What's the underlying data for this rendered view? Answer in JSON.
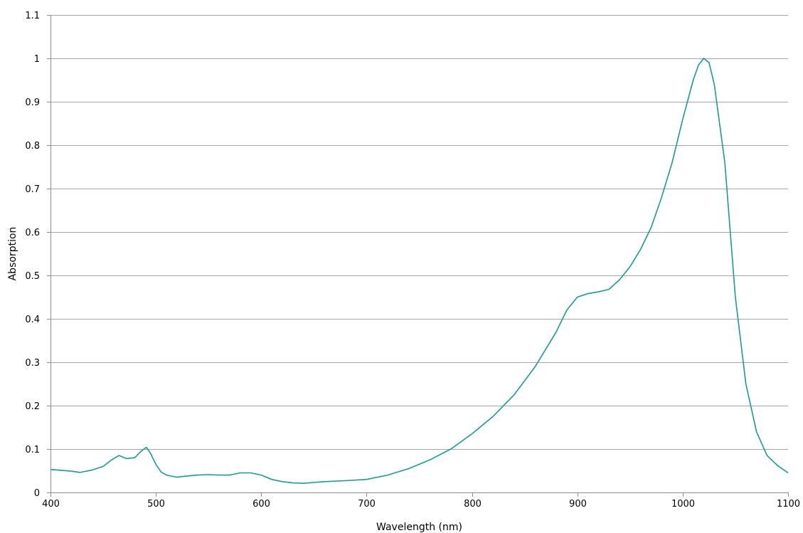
{
  "chart_data": {
    "type": "line",
    "title": "",
    "xlabel": "Wavelength (nm)",
    "ylabel": "Absorption",
    "xlim": [
      400,
      1100
    ],
    "ylim": [
      0,
      1.1
    ],
    "x_ticks": [
      400,
      500,
      600,
      700,
      800,
      900,
      1000,
      1100
    ],
    "x_tick_labels": [
      "400",
      "500",
      "600",
      "700",
      "800",
      "900",
      "1000",
      "1100"
    ],
    "y_ticks": [
      0,
      0.1,
      0.2,
      0.3,
      0.4,
      0.5,
      0.6,
      0.7,
      0.8,
      0.9,
      1,
      1.1
    ],
    "y_tick_labels": [
      "0",
      "0.1",
      "0.2",
      "0.3",
      "0.4",
      "0.5",
      "0.6",
      "0.7",
      "0.8",
      "0.9",
      "1",
      "1.1"
    ],
    "grid": "horizontal",
    "legend": "none",
    "series": [
      {
        "color": "#1a9a94",
        "x": [
          400,
          410,
          420,
          428,
          440,
          450,
          458,
          465,
          472,
          480,
          486,
          491,
          495,
          500,
          505,
          510,
          520,
          530,
          540,
          550,
          560,
          570,
          580,
          590,
          600,
          610,
          620,
          630,
          640,
          650,
          660,
          680,
          700,
          720,
          740,
          760,
          780,
          800,
          820,
          840,
          860,
          870,
          880,
          890,
          900,
          910,
          920,
          930,
          940,
          950,
          960,
          970,
          980,
          990,
          1000,
          1010,
          1015,
          1020,
          1025,
          1030,
          1040,
          1050,
          1060,
          1070,
          1080,
          1090,
          1100
        ],
        "y": [
          0.053,
          0.051,
          0.049,
          0.046,
          0.052,
          0.06,
          0.075,
          0.085,
          0.078,
          0.08,
          0.095,
          0.104,
          0.09,
          0.065,
          0.047,
          0.04,
          0.035,
          0.038,
          0.04,
          0.041,
          0.04,
          0.04,
          0.045,
          0.045,
          0.04,
          0.03,
          0.025,
          0.022,
          0.021,
          0.023,
          0.025,
          0.027,
          0.03,
          0.04,
          0.055,
          0.075,
          0.1,
          0.135,
          0.175,
          0.225,
          0.29,
          0.33,
          0.37,
          0.42,
          0.45,
          0.458,
          0.462,
          0.468,
          0.49,
          0.52,
          0.56,
          0.61,
          0.68,
          0.76,
          0.86,
          0.95,
          0.985,
          1.0,
          0.99,
          0.94,
          0.76,
          0.45,
          0.25,
          0.14,
          0.085,
          0.062,
          0.045
        ]
      }
    ]
  }
}
